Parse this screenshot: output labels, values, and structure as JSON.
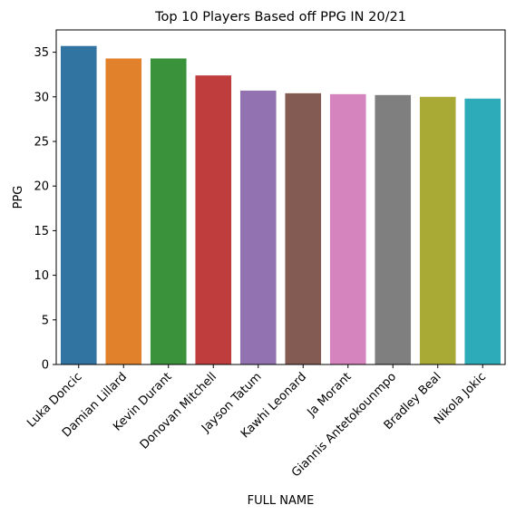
{
  "chart_data": {
    "type": "bar",
    "title": "Top 10 Players Based off PPG IN 20/21",
    "xlabel": "FULL NAME",
    "ylabel": "PPG",
    "categories": [
      "Luka Doncic",
      "Damian Lillard",
      "Kevin Durant",
      "Donovan Mitchell",
      "Jayson Tatum",
      "Kawhi Leonard",
      "Ja Morant",
      "Giannis Antetokounmpo",
      "Bradley Beal",
      "Nikola Jokic"
    ],
    "values": [
      35.7,
      34.3,
      34.3,
      32.4,
      30.7,
      30.4,
      30.3,
      30.2,
      30.0,
      29.8
    ],
    "colors": [
      "#3274a1",
      "#e1812c",
      "#3a923a",
      "#c03d3e",
      "#9372b2",
      "#845b53",
      "#d684bd",
      "#7f7f7f",
      "#a9aa35",
      "#2eabb8"
    ],
    "ylim": [
      0,
      37.5
    ],
    "yticks": [
      0,
      5,
      10,
      15,
      20,
      25,
      30,
      35
    ],
    "grid": false,
    "legend": "none"
  }
}
